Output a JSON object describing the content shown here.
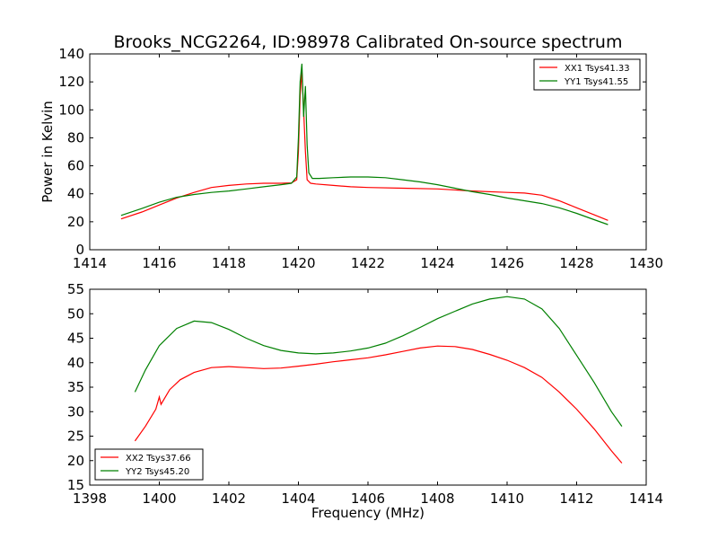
{
  "figure": {
    "title": "Brooks_NCG2264, ID:98978 Calibrated On-source spectrum"
  },
  "chart_data": [
    {
      "type": "line",
      "ylabel": "Power in Kelvin",
      "xlabel": "",
      "xlim": [
        1414,
        1430
      ],
      "ylim": [
        0,
        140
      ],
      "xticks": [
        1414,
        1416,
        1418,
        1420,
        1422,
        1424,
        1426,
        1428,
        1430
      ],
      "yticks": [
        0,
        20,
        40,
        60,
        80,
        100,
        120,
        140
      ],
      "legend_position": "top-right",
      "series": [
        {
          "name": "XX1 Tsys41.33",
          "color": "#ff0000",
          "points": [
            [
              1414.9,
              22
            ],
            [
              1415.5,
              27
            ],
            [
              1416,
              32
            ],
            [
              1416.5,
              37
            ],
            [
              1417,
              41
            ],
            [
              1417.5,
              44.5
            ],
            [
              1418,
              46
            ],
            [
              1418.5,
              47
            ],
            [
              1419,
              47.5
            ],
            [
              1419.5,
              47.5
            ],
            [
              1419.8,
              47.8
            ],
            [
              1419.95,
              50
            ],
            [
              1420.0,
              70
            ],
            [
              1420.05,
              110
            ],
            [
              1420.1,
              127
            ],
            [
              1420.15,
              100
            ],
            [
              1420.2,
              70
            ],
            [
              1420.25,
              50
            ],
            [
              1420.35,
              47.5
            ],
            [
              1420.5,
              47
            ],
            [
              1421,
              46
            ],
            [
              1421.5,
              45
            ],
            [
              1422,
              44.5
            ],
            [
              1423,
              44
            ],
            [
              1424,
              43.5
            ],
            [
              1425,
              42
            ],
            [
              1426,
              41
            ],
            [
              1426.5,
              40.5
            ],
            [
              1427,
              39
            ],
            [
              1427.5,
              35
            ],
            [
              1428,
              30
            ],
            [
              1428.5,
              25
            ],
            [
              1428.9,
              21
            ]
          ]
        },
        {
          "name": "YY1 Tsys41.55",
          "color": "#008000",
          "points": [
            [
              1414.9,
              24.5
            ],
            [
              1415.5,
              29.5
            ],
            [
              1416,
              34
            ],
            [
              1416.5,
              37.5
            ],
            [
              1417,
              39.5
            ],
            [
              1417.5,
              41
            ],
            [
              1418,
              42
            ],
            [
              1418.5,
              43.5
            ],
            [
              1419,
              45
            ],
            [
              1419.5,
              46.5
            ],
            [
              1419.8,
              47.5
            ],
            [
              1419.95,
              52
            ],
            [
              1420.0,
              80
            ],
            [
              1420.05,
              120
            ],
            [
              1420.1,
              133
            ],
            [
              1420.15,
              95
            ],
            [
              1420.2,
              117
            ],
            [
              1420.25,
              75
            ],
            [
              1420.3,
              55
            ],
            [
              1420.4,
              51
            ],
            [
              1420.6,
              51
            ],
            [
              1421,
              51.5
            ],
            [
              1421.5,
              52
            ],
            [
              1422,
              52
            ],
            [
              1422.5,
              51.5
            ],
            [
              1423,
              50
            ],
            [
              1423.5,
              48.5
            ],
            [
              1424,
              46.5
            ],
            [
              1424.5,
              44
            ],
            [
              1425,
              41.5
            ],
            [
              1425.5,
              39.5
            ],
            [
              1426,
              37
            ],
            [
              1426.5,
              35
            ],
            [
              1427,
              33
            ],
            [
              1427.5,
              30
            ],
            [
              1428,
              26
            ],
            [
              1428.5,
              21.5
            ],
            [
              1428.9,
              18
            ]
          ]
        }
      ]
    },
    {
      "type": "line",
      "ylabel": "",
      "xlabel": "Frequency (MHz)",
      "xlim": [
        1398,
        1414
      ],
      "ylim": [
        15,
        55
      ],
      "xticks": [
        1398,
        1400,
        1402,
        1404,
        1406,
        1408,
        1410,
        1412,
        1414
      ],
      "yticks": [
        15,
        20,
        25,
        30,
        35,
        40,
        45,
        50,
        55
      ],
      "legend_position": "bottom-left",
      "series": [
        {
          "name": "XX2 Tsys37.66",
          "color": "#ff0000",
          "points": [
            [
              1399.3,
              24
            ],
            [
              1399.6,
              27
            ],
            [
              1399.9,
              30.5
            ],
            [
              1400,
              33
            ],
            [
              1400.05,
              31.5
            ],
            [
              1400.3,
              34.5
            ],
            [
              1400.6,
              36.5
            ],
            [
              1401,
              38
            ],
            [
              1401.5,
              39
            ],
            [
              1402,
              39.2
            ],
            [
              1402.5,
              39
            ],
            [
              1403,
              38.8
            ],
            [
              1403.5,
              38.9
            ],
            [
              1404,
              39.3
            ],
            [
              1404.5,
              39.7
            ],
            [
              1405,
              40.2
            ],
            [
              1405.5,
              40.6
            ],
            [
              1406,
              41
            ],
            [
              1406.5,
              41.6
            ],
            [
              1407,
              42.3
            ],
            [
              1407.5,
              43
            ],
            [
              1408,
              43.4
            ],
            [
              1408.5,
              43.3
            ],
            [
              1409,
              42.7
            ],
            [
              1409.5,
              41.7
            ],
            [
              1410,
              40.5
            ],
            [
              1410.5,
              39
            ],
            [
              1411,
              37
            ],
            [
              1411.5,
              34
            ],
            [
              1412,
              30.5
            ],
            [
              1412.5,
              26.5
            ],
            [
              1413,
              22
            ],
            [
              1413.3,
              19.5
            ]
          ]
        },
        {
          "name": "YY2 Tsys45.20",
          "color": "#008000",
          "points": [
            [
              1399.3,
              34
            ],
            [
              1399.6,
              38.5
            ],
            [
              1400,
              43.5
            ],
            [
              1400.5,
              47
            ],
            [
              1401,
              48.5
            ],
            [
              1401.5,
              48.2
            ],
            [
              1402,
              46.8
            ],
            [
              1402.5,
              45
            ],
            [
              1403,
              43.5
            ],
            [
              1403.5,
              42.5
            ],
            [
              1404,
              42
            ],
            [
              1404.5,
              41.8
            ],
            [
              1405,
              42
            ],
            [
              1405.5,
              42.4
            ],
            [
              1406,
              43
            ],
            [
              1406.5,
              44
            ],
            [
              1407,
              45.5
            ],
            [
              1407.5,
              47.2
            ],
            [
              1408,
              49
            ],
            [
              1408.5,
              50.5
            ],
            [
              1409,
              52
            ],
            [
              1409.5,
              53
            ],
            [
              1410,
              53.5
            ],
            [
              1410.5,
              53
            ],
            [
              1411,
              51
            ],
            [
              1411.5,
              47
            ],
            [
              1412,
              41.5
            ],
            [
              1412.5,
              36
            ],
            [
              1413,
              30
            ],
            [
              1413.3,
              27
            ]
          ]
        }
      ]
    }
  ]
}
